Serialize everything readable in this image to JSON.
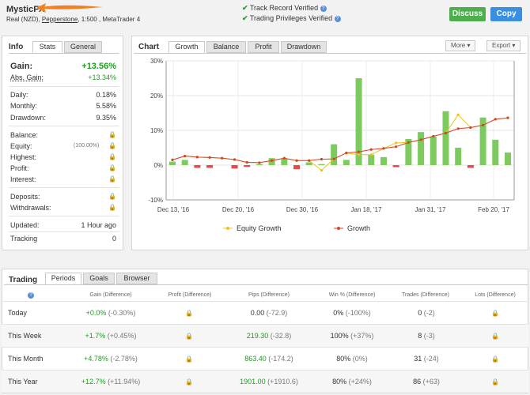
{
  "header": {
    "name": "MysticFX",
    "account_prefix": "Real (NZD),",
    "broker": "Pepperstone",
    "account_suffix": ", 1:500 , MetaTrader 4",
    "verified_1": "Track Record Verified",
    "verified_2": "Trading Privileges Verified",
    "discuss": "Discuss",
    "copy": "Copy"
  },
  "info": {
    "title": "Info",
    "tabs": [
      "Stats",
      "General"
    ],
    "gain_label": "Gain:",
    "gain_value": "+13.56%",
    "abs_gain_label": "Abs. Gain:",
    "abs_gain_value": "+13.34%",
    "daily_label": "Daily:",
    "daily_value": "0.18%",
    "monthly_label": "Monthly:",
    "monthly_value": "5.58%",
    "drawdown_label": "Drawdown:",
    "drawdown_value": "9.35%",
    "balance_label": "Balance:",
    "equity_label": "Equity:",
    "equity_extra": "(100.00%)",
    "highest_label": "Highest:",
    "profit_label": "Profit:",
    "interest_label": "Interest:",
    "deposits_label": "Deposits:",
    "withdrawals_label": "Withdrawals:",
    "updated_label": "Updated:",
    "updated_value": "1 Hour ago",
    "tracking_label": "Tracking",
    "tracking_value": "0"
  },
  "chart_panel": {
    "title": "Chart",
    "tabs": [
      "Growth",
      "Balance",
      "Profit",
      "Drawdown"
    ],
    "more": "More",
    "export": "Export"
  },
  "chart_data": {
    "type": "bar+line",
    "yticks": [
      "30%",
      "20%",
      "10%",
      "0%",
      "-10%"
    ],
    "ylim": [
      -10,
      30
    ],
    "xticks": [
      "Dec 13, '16",
      "Dec 20, '16",
      "Dec 30, '16",
      "Jan 18, '17",
      "Jan 31, '17",
      "Feb 20, '17"
    ],
    "bars": [
      1.0,
      1.5,
      -0.8,
      -0.8,
      0.0,
      -1.0,
      -0.5,
      0.3,
      2.0,
      1.8,
      -1.2,
      0.8,
      0.3,
      6.0,
      1.5,
      25.0,
      3.0,
      2.3,
      -0.6,
      7.5,
      9.5,
      8.2,
      15.5,
      5.0,
      -0.8,
      13.7,
      7.3,
      3.6
    ],
    "growth": [
      1.5,
      2.6,
      2.3,
      2.2,
      2.0,
      1.6,
      0.8,
      0.7,
      1.3,
      2.0,
      1.3,
      1.3,
      1.7,
      1.8,
      3.5,
      3.8,
      4.5,
      4.8,
      5.3,
      6.5,
      7.3,
      8.3,
      9.2,
      10.5,
      10.8,
      11.5,
      13.2,
      13.6
    ],
    "equity": [
      1.5,
      2.6,
      2.3,
      2.2,
      2.0,
      1.6,
      0.8,
      0.7,
      1.3,
      2.0,
      1.3,
      1.3,
      -1.5,
      1.8,
      3.5,
      3.0,
      3.0,
      4.8,
      6.4,
      6.5,
      7.3,
      8.3,
      9.2,
      14.5,
      10.8,
      11.5,
      13.2,
      13.6
    ],
    "legend": [
      "Equity Growth",
      "Growth"
    ],
    "colors": {
      "bar_pos": "#7dcb5f",
      "bar_neg": "#e84a4a",
      "growth": "#d24429",
      "equity": "#f0c020"
    }
  },
  "trading": {
    "title": "Trading",
    "tabs": [
      "Periods",
      "Goals",
      "Browser"
    ],
    "headers": [
      "Gain (Difference)",
      "Profit (Difference)",
      "Pips (Difference)",
      "Win % (Difference)",
      "Trades (Difference)",
      "Lots (Difference)"
    ],
    "rows": [
      {
        "period": "Today",
        "gain": "+0.0%",
        "gain_diff": "(-0.30%)",
        "pips": "0.00",
        "pips_diff": "(-72.9)",
        "win": "0%",
        "win_diff": "(-100%)",
        "trades": "0",
        "trades_diff": "(-2)"
      },
      {
        "period": "This Week",
        "gain": "+1.7%",
        "gain_diff": "(+0.45%)",
        "pips": "219.30",
        "pips_diff": "(-32.8)",
        "win": "100%",
        "win_diff": "(+37%)",
        "trades": "8",
        "trades_diff": "(-3)"
      },
      {
        "period": "This Month",
        "gain": "+4.78%",
        "gain_diff": "(-2.78%)",
        "pips": "863.40",
        "pips_diff": "(-174.2)",
        "win": "80%",
        "win_diff": "(0%)",
        "trades": "31",
        "trades_diff": "(-24)"
      },
      {
        "period": "This Year",
        "gain": "+12.7%",
        "gain_diff": "(+11.94%)",
        "pips": "1901.00",
        "pips_diff": "(+1910.6)",
        "win": "80%",
        "win_diff": "(+24%)",
        "trades": "86",
        "trades_diff": "(+63)"
      }
    ]
  }
}
